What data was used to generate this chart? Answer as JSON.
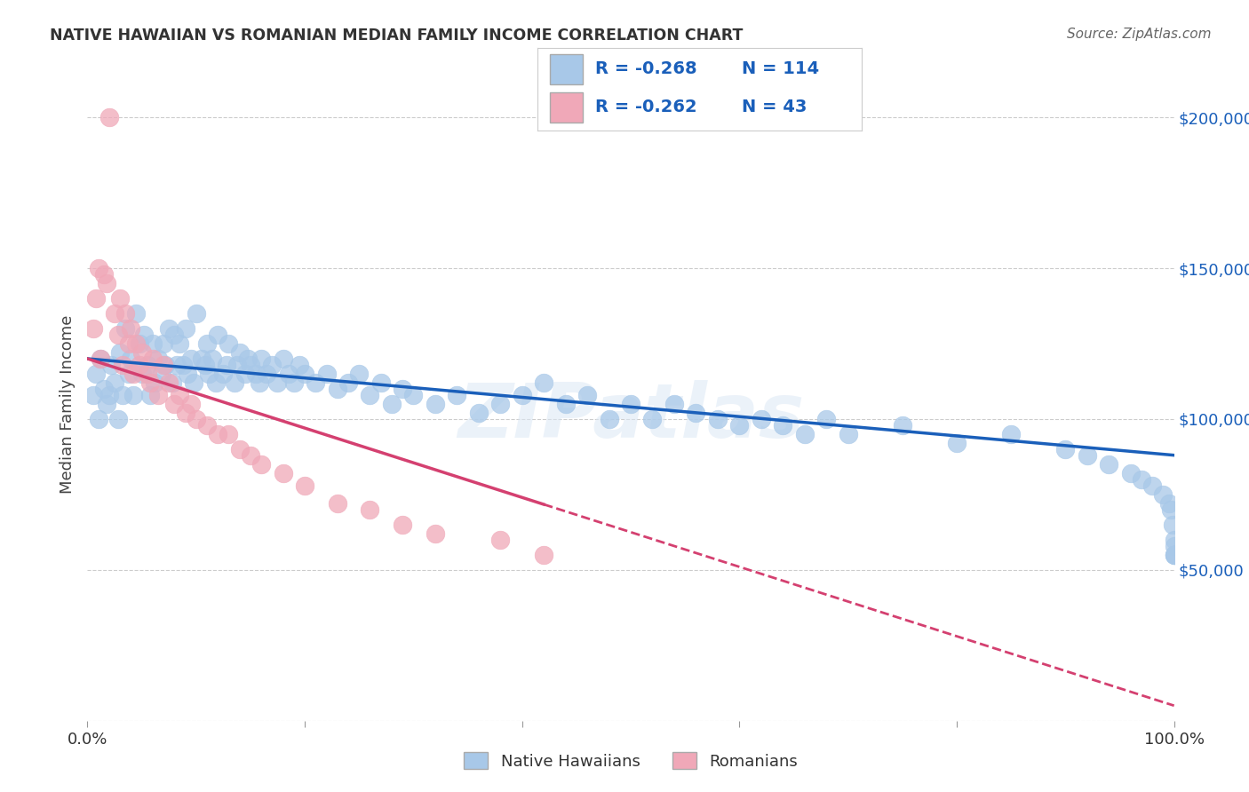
{
  "title": "NATIVE HAWAIIAN VS ROMANIAN MEDIAN FAMILY INCOME CORRELATION CHART",
  "source": "Source: ZipAtlas.com",
  "ylabel": "Median Family Income",
  "blue_R": -0.268,
  "blue_N": 114,
  "pink_R": -0.262,
  "pink_N": 43,
  "blue_color": "#a8c8e8",
  "pink_color": "#f0a8b8",
  "blue_line_color": "#1a5fba",
  "pink_line_color": "#d44070",
  "legend_label_blue": "Native Hawaiians",
  "legend_label_pink": "Romanians",
  "background_color": "#ffffff",
  "grid_color": "#cccccc",
  "title_color": "#333333",
  "source_color": "#666666",
  "ytick_color": "#1a5fba",
  "watermark": "ZIPatlas",
  "xmin": 0.0,
  "xmax": 1.0,
  "ymin": 0,
  "ymax": 210000,
  "blue_x": [
    0.005,
    0.008,
    0.01,
    0.012,
    0.015,
    0.018,
    0.02,
    0.022,
    0.025,
    0.028,
    0.03,
    0.032,
    0.035,
    0.038,
    0.04,
    0.042,
    0.045,
    0.048,
    0.05,
    0.052,
    0.055,
    0.058,
    0.06,
    0.062,
    0.065,
    0.068,
    0.07,
    0.072,
    0.075,
    0.078,
    0.08,
    0.082,
    0.085,
    0.088,
    0.09,
    0.092,
    0.095,
    0.098,
    0.1,
    0.105,
    0.108,
    0.11,
    0.112,
    0.115,
    0.118,
    0.12,
    0.125,
    0.128,
    0.13,
    0.135,
    0.138,
    0.14,
    0.145,
    0.148,
    0.15,
    0.155,
    0.158,
    0.16,
    0.165,
    0.17,
    0.175,
    0.18,
    0.185,
    0.19,
    0.195,
    0.2,
    0.21,
    0.22,
    0.23,
    0.24,
    0.25,
    0.26,
    0.27,
    0.28,
    0.29,
    0.3,
    0.32,
    0.34,
    0.36,
    0.38,
    0.4,
    0.42,
    0.44,
    0.46,
    0.48,
    0.5,
    0.52,
    0.54,
    0.56,
    0.58,
    0.6,
    0.62,
    0.64,
    0.66,
    0.68,
    0.7,
    0.75,
    0.8,
    0.85,
    0.9,
    0.92,
    0.94,
    0.96,
    0.97,
    0.98,
    0.99,
    0.995,
    0.997,
    0.999,
    1.0,
    1.0,
    1.0,
    1.0,
    1.0
  ],
  "blue_y": [
    108000,
    115000,
    100000,
    120000,
    110000,
    105000,
    108000,
    118000,
    112000,
    100000,
    122000,
    108000,
    130000,
    115000,
    120000,
    108000,
    135000,
    125000,
    115000,
    128000,
    118000,
    108000,
    125000,
    112000,
    120000,
    115000,
    125000,
    118000,
    130000,
    112000,
    128000,
    118000,
    125000,
    118000,
    130000,
    115000,
    120000,
    112000,
    135000,
    120000,
    118000,
    125000,
    115000,
    120000,
    112000,
    128000,
    115000,
    118000,
    125000,
    112000,
    118000,
    122000,
    115000,
    120000,
    118000,
    115000,
    112000,
    120000,
    115000,
    118000,
    112000,
    120000,
    115000,
    112000,
    118000,
    115000,
    112000,
    115000,
    110000,
    112000,
    115000,
    108000,
    112000,
    105000,
    110000,
    108000,
    105000,
    108000,
    102000,
    105000,
    108000,
    112000,
    105000,
    108000,
    100000,
    105000,
    100000,
    105000,
    102000,
    100000,
    98000,
    100000,
    98000,
    95000,
    100000,
    95000,
    98000,
    92000,
    95000,
    90000,
    88000,
    85000,
    82000,
    80000,
    78000,
    75000,
    72000,
    70000,
    65000,
    60000,
    58000,
    55000,
    55000,
    55000
  ],
  "pink_x": [
    0.005,
    0.008,
    0.01,
    0.012,
    0.015,
    0.018,
    0.02,
    0.025,
    0.028,
    0.03,
    0.032,
    0.035,
    0.038,
    0.04,
    0.042,
    0.045,
    0.048,
    0.05,
    0.055,
    0.058,
    0.06,
    0.065,
    0.07,
    0.075,
    0.08,
    0.085,
    0.09,
    0.095,
    0.1,
    0.11,
    0.12,
    0.13,
    0.14,
    0.15,
    0.16,
    0.18,
    0.2,
    0.23,
    0.26,
    0.29,
    0.32,
    0.38,
    0.42
  ],
  "pink_y": [
    130000,
    140000,
    150000,
    120000,
    148000,
    145000,
    200000,
    135000,
    128000,
    140000,
    118000,
    135000,
    125000,
    130000,
    115000,
    125000,
    118000,
    122000,
    115000,
    112000,
    120000,
    108000,
    118000,
    112000,
    105000,
    108000,
    102000,
    105000,
    100000,
    98000,
    95000,
    95000,
    90000,
    88000,
    85000,
    82000,
    78000,
    72000,
    70000,
    65000,
    62000,
    60000,
    55000
  ]
}
